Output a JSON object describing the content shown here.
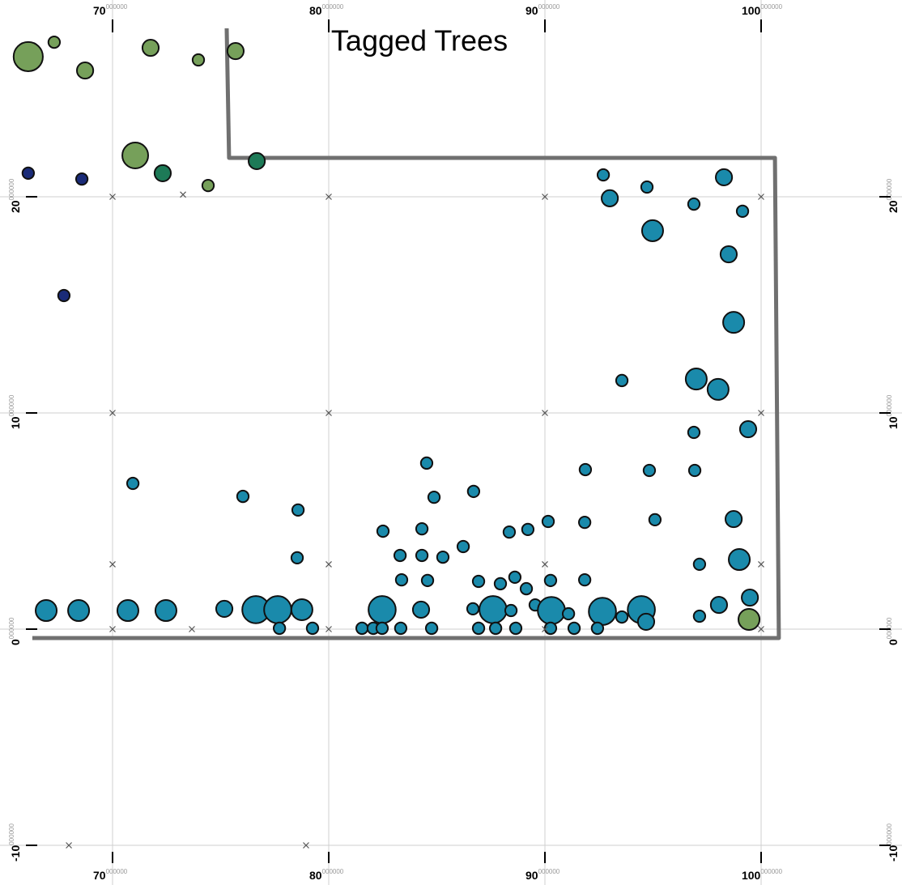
{
  "chart_data": {
    "type": "bubble",
    "title": "Tagged Trees",
    "xlim": [
      64.794,
      106.517
    ],
    "ylim": [
      -11.835,
      29.101
    ],
    "xticks": [
      70,
      80,
      90,
      100
    ],
    "yticks": [
      -10,
      0,
      10,
      20
    ],
    "tick_fraction": "000000",
    "grid": true,
    "boundary": {
      "color": "#707070",
      "x": [
        75.28,
        75.39,
        100.64,
        100.82,
        66.29
      ],
      "y": [
        27.79,
        21.8,
        21.8,
        -0.41,
        -0.41
      ]
    },
    "series": [
      {
        "color": "#76a05a",
        "x": [
          66.1,
          67.3,
          68.73,
          71.76,
          73.97,
          75.69,
          71.05,
          74.42,
          99.44
        ],
        "y": [
          26.48,
          27.15,
          25.84,
          26.89,
          26.33,
          26.74,
          21.91,
          20.52,
          0.45
        ],
        "sizes": [
          4.3,
          1.7,
          2.4,
          2.4,
          1.7,
          2.4,
          3.8,
          1.7,
          3.1
        ]
      },
      {
        "color": "#1d7a57",
        "x": [
          72.32,
          76.67
        ],
        "y": [
          21.09,
          21.65
        ],
        "sizes": [
          2.4,
          2.4
        ]
      },
      {
        "color": "#1a2b78",
        "x": [
          66.1,
          68.58,
          67.75
        ],
        "y": [
          21.09,
          20.82,
          15.43
        ],
        "sizes": [
          1.7,
          1.7,
          1.7
        ]
      },
      {
        "color": "#1a8aab",
        "x": [
          92.7,
          94.72,
          98.28,
          93.0,
          96.89,
          99.14,
          94.98,
          98.5,
          98.73,
          93.56,
          97.0,
          98.01,
          99.4,
          96.89,
          70.94,
          76.03,
          78.58,
          84.53,
          84.87,
          86.7,
          91.87,
          94.83,
          96.93,
          90.15,
          91.84,
          95.09,
          98.73,
          82.51,
          84.31,
          88.35,
          89.21,
          86.22,
          85.28,
          83.3,
          84.31,
          78.54,
          97.15,
          98.99,
          83.37,
          84.57,
          86.93,
          87.94,
          88.61,
          89.14,
          90.26,
          91.84,
          99.48,
          66.93,
          68.43,
          70.71,
          72.47,
          75.17,
          76.63,
          77.64,
          78.76,
          82.47,
          84.27,
          86.67,
          87.6,
          88.43,
          89.55,
          90.3,
          91.09,
          92.66,
          93.56,
          94.46,
          94.68,
          97.15,
          98.05,
          77.72,
          79.25,
          81.54,
          82.06,
          82.47,
          83.33,
          84.76,
          86.93,
          87.72,
          88.65,
          90.26,
          91.35,
          92.43
        ],
        "y": [
          21.01,
          20.45,
          20.9,
          19.93,
          19.66,
          19.33,
          18.43,
          17.34,
          14.19,
          11.5,
          11.57,
          11.09,
          9.25,
          9.1,
          6.74,
          6.14,
          5.51,
          7.68,
          6.1,
          6.37,
          7.38,
          7.34,
          7.34,
          4.98,
          4.94,
          5.06,
          5.09,
          4.53,
          4.64,
          4.49,
          4.61,
          3.82,
          3.33,
          3.41,
          3.41,
          3.3,
          3.0,
          3.22,
          2.28,
          2.25,
          2.21,
          2.1,
          2.4,
          1.87,
          2.25,
          2.28,
          1.46,
          0.86,
          0.86,
          0.86,
          0.86,
          0.94,
          0.9,
          0.9,
          0.9,
          0.9,
          0.9,
          0.94,
          0.9,
          0.86,
          1.12,
          0.86,
          0.71,
          0.82,
          0.56,
          0.9,
          0.34,
          0.6,
          1.12,
          0.04,
          0.04,
          0.04,
          0.04,
          0.04,
          0.04,
          0.04,
          0.04,
          0.04,
          0.04,
          0.04,
          0.04,
          0.04
        ],
        "sizes": [
          1.7,
          1.7,
          2.4,
          2.4,
          1.7,
          1.7,
          3.1,
          2.4,
          3.1,
          1.7,
          3.1,
          3.1,
          2.4,
          1.7,
          1.7,
          1.7,
          1.7,
          1.7,
          1.7,
          1.7,
          1.7,
          1.7,
          1.7,
          1.7,
          1.7,
          1.7,
          2.4,
          1.7,
          1.7,
          1.7,
          1.7,
          1.7,
          1.7,
          1.7,
          1.7,
          1.7,
          1.7,
          3.1,
          1.7,
          1.7,
          1.7,
          1.7,
          1.7,
          1.7,
          1.7,
          1.7,
          2.4,
          3.1,
          3.1,
          3.1,
          3.1,
          2.4,
          4,
          4,
          3.1,
          4,
          2.4,
          1.7,
          4,
          1.7,
          1.7,
          4,
          1.7,
          4,
          1.7,
          4,
          2.4,
          1.7,
          2.4,
          1.7,
          1.7,
          1.7,
          1.7,
          1.7,
          1.7,
          1.7,
          1.7,
          1.7,
          1.7,
          1.7,
          1.7,
          1.7
        ]
      },
      {
        "marker": "x",
        "color": "#555555",
        "x": [
          73.26,
          70,
          80,
          90,
          100,
          70,
          80,
          90,
          100,
          70,
          80,
          90,
          100,
          70,
          73.67,
          80,
          90,
          100,
          67.98,
          78.95
        ],
        "y": [
          20.1,
          20,
          20,
          20,
          20,
          10,
          10,
          10,
          10,
          3,
          3,
          3,
          3,
          0,
          0,
          0,
          0,
          0,
          -10,
          -10
        ]
      }
    ]
  }
}
